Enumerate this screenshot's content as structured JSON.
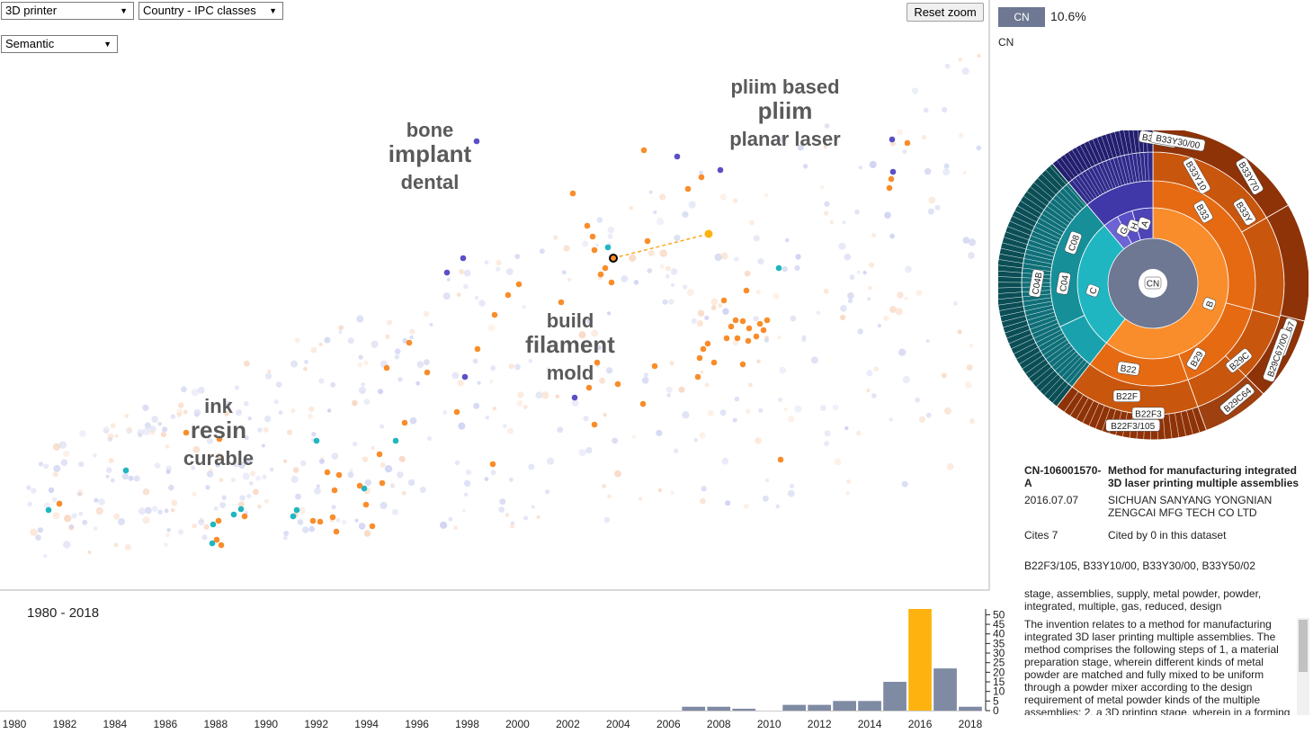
{
  "controls": {
    "dataset_select": "3D printer",
    "colour_select": "Country - IPC classes",
    "layout_select": "Semantic",
    "reset_zoom_label": "Reset zoom"
  },
  "map": {
    "clusters": [
      {
        "terms": [
          "bone",
          "implant",
          "dental"
        ]
      },
      {
        "terms": [
          "pliim based",
          "pliim",
          "planar laser"
        ]
      },
      {
        "terms": [
          "build",
          "filament",
          "mold"
        ]
      },
      {
        "terms": [
          "ink",
          "resin",
          "curable"
        ]
      }
    ]
  },
  "legend": {
    "country": "CN",
    "country_color": "#6e7893",
    "share": "10.6%",
    "caption": "CN"
  },
  "sunburst": {
    "center_label": "CN",
    "labels": [
      "CN",
      "B",
      "B29",
      "B33",
      "B22",
      "B29C",
      "B33Y",
      "B22F",
      "B29C64",
      "B29C67",
      "B29C67/00",
      "B33Y10",
      "B33Y70",
      "B33Y30",
      "B33Y30/00",
      "B22F3",
      "B22F3/105",
      "C",
      "C04",
      "C04B",
      "C08",
      "G",
      "H",
      "A"
    ],
    "colors": {
      "B": "#f98d2b",
      "C": "#1fb6c1",
      "G": "#5a4fc6",
      "H": "#5a4fc6",
      "A": "#5a4fc6",
      "center": "#6e7893"
    }
  },
  "detail": {
    "id": "CN-106001570-A",
    "title": "Method for manufacturing integrated 3D laser printing multiple assemblies",
    "date": "2016.07.07",
    "applicant": "SICHUAN SANYANG YONGNIAN ZENGCAI MFG TECH CO LTD",
    "cites": "Cites 7",
    "cited_by": "Cited by 0 in this dataset",
    "classes": "B22F3/105, B33Y10/00, B33Y30/00, B33Y50/02",
    "keywords": "stage, assemblies, supply, metal powder, powder, integrated, multiple, gas, reduced, design",
    "abstract": "The invention relates to a method for manufacturing integrated 3D laser printing multiple assemblies. The method comprises the following steps of 1, a material preparation stage, wherein different kinds of metal powder are matched and fully mixed to be uniform through a powder mixer according to the design requirement of metal powder kinds of the multiple assemblies; 2, a 3D printing stage, wherein in a forming"
  },
  "timeline": {
    "range_label": "1980 - 2018",
    "chart_data": {
      "type": "bar",
      "x": [
        2007,
        2008,
        2009,
        2010,
        2011,
        2012,
        2013,
        2014,
        2015,
        2016,
        2017,
        2018
      ],
      "values": [
        2,
        2,
        1,
        0,
        3,
        3,
        5,
        5,
        15,
        53,
        22,
        2
      ],
      "highlight_year": 2016,
      "xlim": [
        1980,
        2018.5
      ],
      "ylim": [
        0,
        53
      ],
      "x_ticks": [
        "1980",
        "1982",
        "1984",
        "1986",
        "1988",
        "1990",
        "1992",
        "1994",
        "1996",
        "1998",
        "2000",
        "2002",
        "2004",
        "2006",
        "2008",
        "2010",
        "2012",
        "2014",
        "2016",
        "2018"
      ],
      "y_ticks": [
        "0",
        "5",
        "10",
        "15",
        "20",
        "25",
        "30",
        "35",
        "40",
        "45",
        "50"
      ],
      "bar_color": "#7f8aa3",
      "highlight_color": "#fdb210"
    }
  }
}
